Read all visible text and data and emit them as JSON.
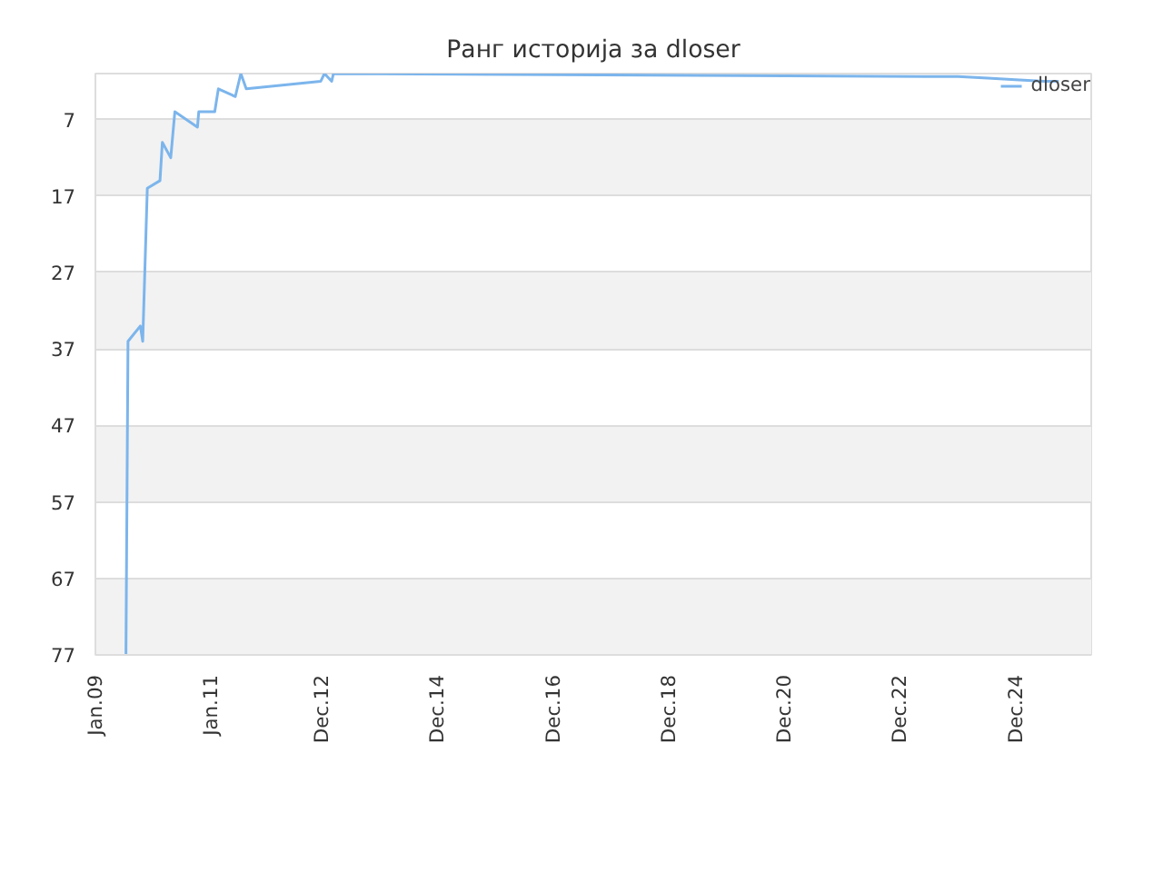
{
  "chart_data": {
    "type": "line",
    "title": "Ранг историја за dloser",
    "x": [
      "2009-07-13",
      "2009-07-26",
      "2009-10-12",
      "2009-10-27",
      "2009-11-25",
      "2010-02-13",
      "2010-02-28",
      "2010-04-22",
      "2010-05-18",
      "2010-10-08",
      "2010-10-16",
      "2011-01-25",
      "2011-02-17",
      "2011-06-04",
      "2011-07-09",
      "2011-08-12",
      "2012-11-25",
      "2012-12-18",
      "2013-02-02",
      "2013-02-13",
      "2023-12-05",
      "2024-06-10",
      "2024-11-30",
      "2025-06-01",
      "2025-09-01"
    ],
    "series": [
      {
        "name": "dloser",
        "color": "#7cb5ec",
        "values": [
          77,
          36,
          34,
          36,
          16,
          15,
          10,
          12,
          6,
          8,
          6,
          6,
          3,
          4,
          1,
          3,
          2,
          1,
          2,
          1,
          1.4,
          1.6,
          1.8,
          2,
          2
        ]
      }
    ],
    "xlim": [
      "2009-01-01",
      "2026-03-25"
    ],
    "xticks": [
      {
        "value": "2009-01-01",
        "label": "Jan.09"
      },
      {
        "value": "2011-01-01",
        "label": "Jan.11"
      },
      {
        "value": "2012-12-01",
        "label": "Dec.12"
      },
      {
        "value": "2014-12-01",
        "label": "Dec.14"
      },
      {
        "value": "2016-12-01",
        "label": "Dec.16"
      },
      {
        "value": "2018-12-01",
        "label": "Dec.18"
      },
      {
        "value": "2020-12-01",
        "label": "Dec.20"
      },
      {
        "value": "2022-12-01",
        "label": "Dec.22"
      },
      {
        "value": "2024-12-01",
        "label": "Dec.24"
      }
    ],
    "ylim": [
      77,
      1
    ],
    "yticks": [
      7,
      17,
      27,
      37,
      47,
      57,
      67,
      77
    ],
    "grid": "y",
    "legend": "top right",
    "marker": "none",
    "line_style": "solid"
  }
}
